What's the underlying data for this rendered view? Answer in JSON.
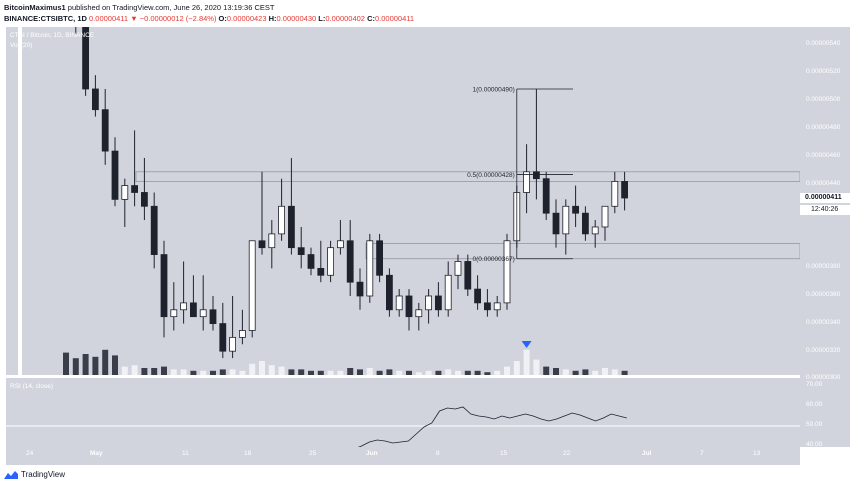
{
  "header": {
    "author": "BitcoinMaximus1",
    "published": "published on TradingView.com, June 26, 2020 13:19:36 CEST",
    "symbol": "BINANCE:CTSIBTC, 1D",
    "last": "0.00000411",
    "change": "−0.00000012 (−2.84%)",
    "o_label": "O:",
    "o_value": "0.00000423",
    "h_label": "H:",
    "h_value": "0.00000430",
    "l_label": "L:",
    "l_value": "0.00000402",
    "c_label": "C:",
    "c_value": "0.00000411"
  },
  "overlay": {
    "title": "CTSI / Bitcoin, 1D, BINANCE",
    "volume_label": "Vol (20)"
  },
  "price_axis": {
    "ticks": [
      "0.00000540",
      "0.00000520",
      "0.00000500",
      "0.00000480",
      "0.00000460",
      "0.00000440",
      "0.00000420",
      "0.00000380",
      "0.00000360",
      "0.00000340",
      "0.00000320",
      "0.00000300"
    ],
    "current_price": "0.00000411",
    "countdown": "12:40:26"
  },
  "fib_labels": {
    "level_1": "1(0.00000490)",
    "level_05": "0.5(0.00000428)",
    "level_0": "0(0.00000367)"
  },
  "rsi": {
    "label": "RSI (14, close)",
    "ticks": [
      "70.00",
      "60.00",
      "50.00",
      "40.00"
    ]
  },
  "time_axis": {
    "ticks": [
      {
        "label": "24",
        "bold": false
      },
      {
        "label": "May",
        "bold": true
      },
      {
        "label": "11",
        "bold": false
      },
      {
        "label": "18",
        "bold": false
      },
      {
        "label": "25",
        "bold": false
      },
      {
        "label": "Jun",
        "bold": true
      },
      {
        "label": "8",
        "bold": false
      },
      {
        "label": "15",
        "bold": false
      },
      {
        "label": "22",
        "bold": false
      },
      {
        "label": "Jul",
        "bold": true
      },
      {
        "label": "7",
        "bold": false
      },
      {
        "label": "13",
        "bold": false
      },
      {
        "label": "20",
        "bold": false
      }
    ]
  },
  "footer": {
    "brand": "TradingView"
  },
  "colors": {
    "background": "#d1d4dc",
    "up_candle": "#ffffff",
    "down_candle": "#1e222d",
    "volume_down": "#3a3e4a",
    "volume_up": "#f0f1f4",
    "accent_marker": "#2962ff",
    "change_red": "#e53935"
  },
  "chart_data": {
    "type": "candlestick",
    "symbol": "CTSIBTC",
    "interval": "1D",
    "ohlc": [
      [
        6.05,
        6.3,
        5.75,
        5.85
      ],
      [
        5.85,
        5.95,
        5.3,
        5.4
      ],
      [
        5.4,
        5.5,
        4.85,
        4.9
      ],
      [
        4.9,
        5.0,
        4.7,
        4.75
      ],
      [
        4.75,
        4.9,
        4.35,
        4.45
      ],
      [
        4.45,
        4.55,
        4.05,
        4.1
      ],
      [
        4.1,
        4.25,
        3.9,
        4.2
      ],
      [
        4.2,
        4.6,
        4.05,
        4.15
      ],
      [
        4.15,
        4.4,
        3.95,
        4.05
      ],
      [
        4.05,
        4.15,
        3.6,
        3.7
      ],
      [
        3.7,
        3.8,
        3.1,
        3.25
      ],
      [
        3.25,
        3.5,
        3.15,
        3.3
      ],
      [
        3.3,
        3.65,
        3.2,
        3.35
      ],
      [
        3.35,
        3.55,
        3.25,
        3.25
      ],
      [
        3.25,
        3.55,
        3.15,
        3.3
      ],
      [
        3.3,
        3.4,
        3.15,
        3.2
      ],
      [
        3.2,
        3.35,
        2.95,
        3.0
      ],
      [
        3.0,
        3.4,
        2.95,
        3.1
      ],
      [
        3.1,
        3.3,
        3.05,
        3.15
      ],
      [
        3.15,
        3.8,
        3.1,
        3.8
      ],
      [
        3.8,
        4.3,
        3.7,
        3.75
      ],
      [
        3.75,
        3.95,
        3.6,
        3.85
      ],
      [
        3.85,
        4.25,
        3.8,
        4.05
      ],
      [
        4.05,
        4.4,
        3.7,
        3.75
      ],
      [
        3.75,
        3.9,
        3.6,
        3.7
      ],
      [
        3.7,
        3.75,
        3.55,
        3.6
      ],
      [
        3.6,
        3.8,
        3.5,
        3.55
      ],
      [
        3.55,
        3.8,
        3.5,
        3.75
      ],
      [
        3.75,
        3.95,
        3.7,
        3.8
      ],
      [
        3.8,
        3.95,
        3.4,
        3.5
      ],
      [
        3.5,
        3.6,
        3.3,
        3.4
      ],
      [
        3.4,
        3.85,
        3.35,
        3.8
      ],
      [
        3.8,
        3.85,
        3.5,
        3.55
      ],
      [
        3.55,
        3.6,
        3.25,
        3.3
      ],
      [
        3.3,
        3.45,
        3.25,
        3.4
      ],
      [
        3.4,
        3.45,
        3.15,
        3.25
      ],
      [
        3.25,
        3.35,
        3.15,
        3.3
      ],
      [
        3.3,
        3.45,
        3.2,
        3.4
      ],
      [
        3.4,
        3.5,
        3.25,
        3.3
      ],
      [
        3.3,
        3.65,
        3.25,
        3.55
      ],
      [
        3.55,
        3.7,
        3.45,
        3.65
      ],
      [
        3.65,
        3.7,
        3.4,
        3.45
      ],
      [
        3.45,
        3.55,
        3.3,
        3.35
      ],
      [
        3.35,
        3.45,
        3.25,
        3.3
      ],
      [
        3.3,
        3.4,
        3.25,
        3.35
      ],
      [
        3.35,
        3.85,
        3.3,
        3.8
      ],
      [
        3.8,
        4.2,
        3.75,
        4.15
      ],
      [
        4.15,
        4.5,
        4.0,
        4.3
      ],
      [
        4.3,
        4.9,
        4.1,
        4.25
      ],
      [
        4.25,
        4.3,
        3.95,
        4.0
      ],
      [
        4.0,
        4.1,
        3.75,
        3.85
      ],
      [
        3.85,
        4.1,
        3.7,
        4.05
      ],
      [
        4.05,
        4.2,
        3.9,
        4.0
      ],
      [
        4.0,
        4.05,
        3.8,
        3.85
      ],
      [
        3.85,
        3.95,
        3.75,
        3.9
      ],
      [
        3.9,
        4.05,
        3.8,
        4.05
      ],
      [
        4.05,
        4.3,
        4.0,
        4.23
      ],
      [
        4.23,
        4.3,
        4.02,
        4.11
      ]
    ],
    "volume": [
      {
        "v": 1.6,
        "up": false
      },
      {
        "v": 1.2,
        "up": false
      },
      {
        "v": 1.5,
        "up": false
      },
      {
        "v": 1.3,
        "up": false
      },
      {
        "v": 1.8,
        "up": false
      },
      {
        "v": 1.4,
        "up": false
      },
      {
        "v": 0.6,
        "up": true
      },
      {
        "v": 0.7,
        "up": true
      },
      {
        "v": 0.5,
        "up": false
      },
      {
        "v": 0.5,
        "up": false
      },
      {
        "v": 0.6,
        "up": false
      },
      {
        "v": 0.4,
        "up": true
      },
      {
        "v": 0.4,
        "up": true
      },
      {
        "v": 0.3,
        "up": false
      },
      {
        "v": 0.3,
        "up": true
      },
      {
        "v": 0.3,
        "up": false
      },
      {
        "v": 0.4,
        "up": false
      },
      {
        "v": 0.4,
        "up": true
      },
      {
        "v": 0.3,
        "up": true
      },
      {
        "v": 0.8,
        "up": true
      },
      {
        "v": 1.0,
        "up": true
      },
      {
        "v": 0.7,
        "up": true
      },
      {
        "v": 0.6,
        "up": true
      },
      {
        "v": 0.4,
        "up": false
      },
      {
        "v": 0.4,
        "up": false
      },
      {
        "v": 0.3,
        "up": false
      },
      {
        "v": 0.3,
        "up": false
      },
      {
        "v": 0.3,
        "up": true
      },
      {
        "v": 0.3,
        "up": true
      },
      {
        "v": 0.5,
        "up": false
      },
      {
        "v": 0.4,
        "up": false
      },
      {
        "v": 0.5,
        "up": true
      },
      {
        "v": 0.3,
        "up": false
      },
      {
        "v": 0.4,
        "up": false
      },
      {
        "v": 0.3,
        "up": true
      },
      {
        "v": 0.3,
        "up": false
      },
      {
        "v": 0.2,
        "up": true
      },
      {
        "v": 0.3,
        "up": true
      },
      {
        "v": 0.3,
        "up": false
      },
      {
        "v": 0.4,
        "up": true
      },
      {
        "v": 0.3,
        "up": true
      },
      {
        "v": 0.3,
        "up": false
      },
      {
        "v": 0.3,
        "up": false
      },
      {
        "v": 0.2,
        "up": false
      },
      {
        "v": 0.3,
        "up": true
      },
      {
        "v": 0.6,
        "up": true
      },
      {
        "v": 1.0,
        "up": true
      },
      {
        "v": 1.8,
        "up": true
      },
      {
        "v": 1.1,
        "up": true
      },
      {
        "v": 0.6,
        "up": false
      },
      {
        "v": 0.5,
        "up": false
      },
      {
        "v": 0.4,
        "up": true
      },
      {
        "v": 0.3,
        "up": false
      },
      {
        "v": 0.4,
        "up": false
      },
      {
        "v": 0.3,
        "up": true
      },
      {
        "v": 0.5,
        "up": true
      },
      {
        "v": 0.4,
        "up": true
      },
      {
        "v": 0.3,
        "up": false
      }
    ],
    "rsi": [
      [
        0,
        38
      ],
      [
        1,
        38.5
      ],
      [
        2,
        40
      ],
      [
        3,
        42
      ],
      [
        4,
        43
      ],
      [
        5,
        42.5
      ],
      [
        6,
        41.5
      ],
      [
        7,
        42
      ],
      [
        8,
        42.5
      ],
      [
        9,
        46
      ],
      [
        10,
        49.5
      ],
      [
        11,
        51.5
      ],
      [
        12,
        57.5
      ],
      [
        13,
        59
      ],
      [
        14,
        58.5
      ],
      [
        15,
        59.5
      ],
      [
        16,
        56
      ],
      [
        17,
        55
      ],
      [
        18,
        54.5
      ],
      [
        19,
        53.5
      ],
      [
        20,
        55
      ],
      [
        21,
        54
      ],
      [
        22,
        55
      ],
      [
        23,
        56
      ],
      [
        24,
        55
      ],
      [
        25,
        53.5
      ],
      [
        26,
        52.5
      ],
      [
        27,
        53.5
      ],
      [
        28,
        55
      ],
      [
        29,
        56.5
      ],
      [
        30,
        55.5
      ],
      [
        31,
        54
      ],
      [
        32,
        52.5
      ],
      [
        33,
        54
      ],
      [
        34,
        56
      ],
      [
        35,
        55
      ],
      [
        36,
        54
      ]
    ],
    "fibonacci": [
      {
        "level": "1",
        "price": 4.9e-06
      },
      {
        "level": "0.5",
        "price": 4.28e-06
      },
      {
        "level": "0",
        "price": 3.67e-06
      }
    ],
    "resistance_zone": [
      4.23e-06,
      4.3e-06
    ],
    "support_zone": [
      3.67e-06,
      3.78e-06
    ],
    "ylim": [
      2.9e-06,
      5.4e-06
    ]
  }
}
